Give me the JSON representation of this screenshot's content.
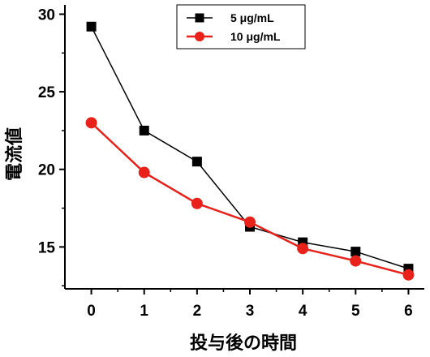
{
  "chart_data": {
    "type": "line",
    "title": "",
    "xlabel": "投与後の時間",
    "ylabel": "電流値",
    "x": [
      0,
      1,
      2,
      3,
      4,
      5,
      6
    ],
    "xlim": [
      -0.5,
      6.3
    ],
    "ylim": [
      12.3,
      30.6
    ],
    "x_ticks": [
      "0",
      "1",
      "2",
      "3",
      "4",
      "5",
      "6"
    ],
    "y_ticks": [
      "15",
      "20",
      "25",
      "30"
    ],
    "grid": false,
    "legend_position": "top-center",
    "series": [
      {
        "name": "5 μg/mL",
        "marker": "square",
        "color": "#000000",
        "values": [
          29.2,
          22.5,
          20.5,
          16.3,
          15.3,
          14.7,
          13.6
        ]
      },
      {
        "name": "10 μg/mL",
        "marker": "circle",
        "color": "#e8221b",
        "values": [
          23.0,
          19.8,
          17.8,
          16.6,
          14.9,
          14.1,
          13.2
        ]
      }
    ]
  }
}
